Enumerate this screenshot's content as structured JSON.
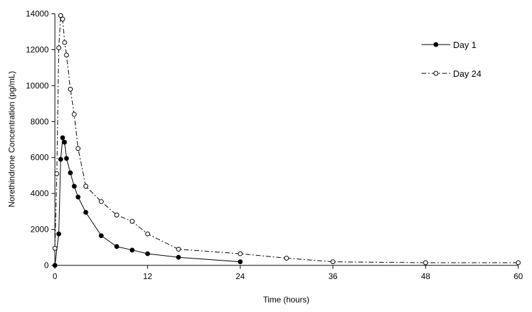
{
  "chart_data": {
    "type": "line",
    "title": "",
    "xlabel": "Time (hours)",
    "ylabel": "Norethindrone Concentration (pg/mL)",
    "xlim": [
      0,
      60
    ],
    "ylim": [
      0,
      14000
    ],
    "x_ticks": [
      0,
      12,
      24,
      36,
      48,
      60
    ],
    "y_ticks": [
      0,
      2000,
      4000,
      6000,
      8000,
      10000,
      12000,
      14000
    ],
    "grid": false,
    "legend_position": "top-right",
    "series": [
      {
        "name": "Day 1",
        "line_style": "solid",
        "marker": "filled-circle",
        "color": "#000000",
        "x": [
          0,
          0.5,
          0.75,
          1,
          1.25,
          1.5,
          2,
          2.5,
          3,
          4,
          6,
          8,
          10,
          12,
          16,
          24
        ],
        "y": [
          0,
          1750,
          5900,
          7100,
          6850,
          5950,
          5150,
          4400,
          3800,
          2950,
          1650,
          1050,
          850,
          650,
          450,
          200
        ]
      },
      {
        "name": "Day 24",
        "line_style": "dash-dot",
        "marker": "open-circle",
        "color": "#000000",
        "x": [
          0,
          0.25,
          0.5,
          0.75,
          1,
          1.25,
          1.5,
          2,
          2.5,
          3,
          4,
          6,
          8,
          10,
          12,
          16,
          24,
          30,
          36,
          48,
          60
        ],
        "y": [
          950,
          5100,
          12100,
          13900,
          13700,
          12400,
          11700,
          9800,
          8400,
          6500,
          4400,
          3550,
          2800,
          2450,
          1750,
          900,
          650,
          400,
          200,
          150,
          150
        ]
      }
    ]
  }
}
